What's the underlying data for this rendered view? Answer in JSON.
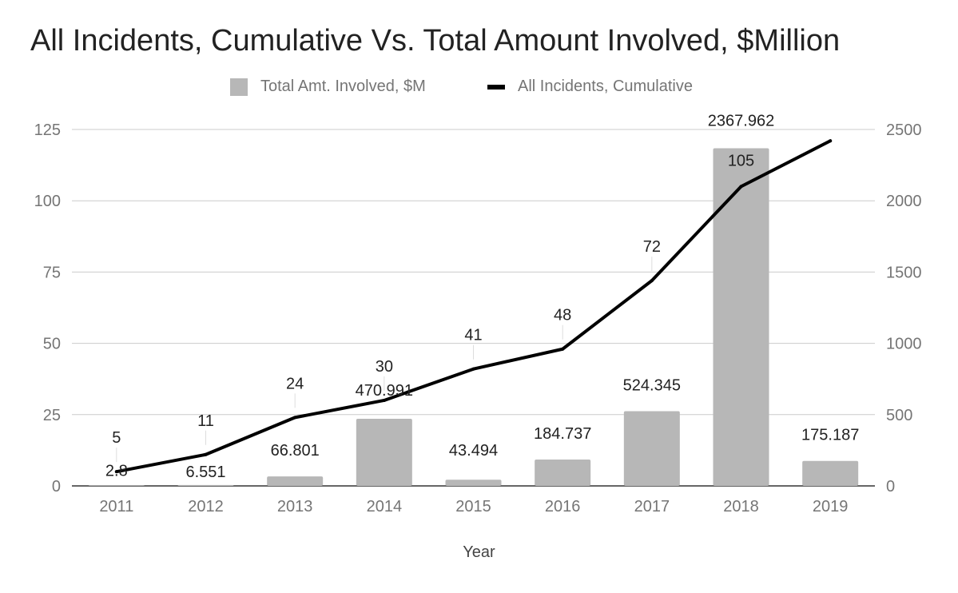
{
  "chart_data": {
    "type": "bar",
    "title": "All Incidents, Cumulative Vs. Total Amount Involved, $Million",
    "xlabel": "Year",
    "ylabel_left": "",
    "ylabel_right": "",
    "categories": [
      "2011",
      "2012",
      "2013",
      "2014",
      "2015",
      "2016",
      "2017",
      "2018",
      "2019"
    ],
    "series": [
      {
        "name": "Total Amt. Involved, $M",
        "kind": "bar",
        "axis": "right",
        "color": "#b7b7b7",
        "values": [
          2.8,
          6.551,
          66.801,
          470.991,
          43.494,
          184.737,
          524.345,
          2367.962,
          175.187
        ],
        "labels": [
          "2.8",
          "6.551",
          "66.801",
          "470.991",
          "43.494",
          "184.737",
          "524.345",
          "2367.962",
          "175.187"
        ]
      },
      {
        "name": "All Incidents, Cumulative",
        "kind": "line",
        "axis": "left",
        "color": "#000000",
        "values": [
          5,
          11,
          24,
          30,
          41,
          48,
          72,
          105,
          121
        ],
        "labels": [
          "5",
          "11",
          "24",
          "30",
          "41",
          "48",
          "72",
          "105",
          ""
        ]
      }
    ],
    "ylim_left": [
      0,
      125
    ],
    "yticks_left": [
      "0",
      "25",
      "50",
      "75",
      "100",
      "125"
    ],
    "ylim_right": [
      0,
      2500
    ],
    "yticks_right": [
      "0",
      "500",
      "1000",
      "1500",
      "2000",
      "2500"
    ],
    "grid": true,
    "legend_position": "top"
  }
}
